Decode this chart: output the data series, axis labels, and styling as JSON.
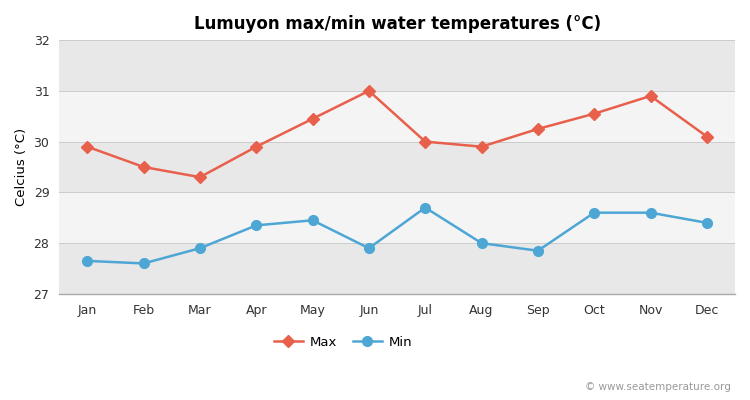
{
  "title": "Lumuyon max/min water temperatures (°C)",
  "ylabel": "Celcius (°C)",
  "months": [
    "Jan",
    "Feb",
    "Mar",
    "Apr",
    "May",
    "Jun",
    "Jul",
    "Aug",
    "Sep",
    "Oct",
    "Nov",
    "Dec"
  ],
  "max_temps": [
    29.9,
    29.5,
    29.3,
    29.9,
    30.45,
    31.0,
    30.0,
    29.9,
    30.25,
    30.55,
    30.9,
    30.1
  ],
  "min_temps": [
    27.65,
    27.6,
    27.9,
    28.35,
    28.45,
    27.9,
    28.7,
    28.0,
    27.85,
    28.6,
    28.6,
    28.4
  ],
  "max_color": "#e8604c",
  "min_color": "#4da6d4",
  "bg_color": "#ffffff",
  "plot_bg_color": "#ffffff",
  "band_color_dark": "#e8e8e8",
  "band_color_light": "#f4f4f4",
  "ylim": [
    27.0,
    32.0
  ],
  "yticks": [
    27,
    28,
    29,
    30,
    31,
    32
  ],
  "legend_labels": [
    "Max",
    "Min"
  ],
  "watermark": "© www.seatemperature.org",
  "title_fontsize": 12,
  "label_fontsize": 9.5,
  "tick_fontsize": 9,
  "watermark_fontsize": 7.5
}
